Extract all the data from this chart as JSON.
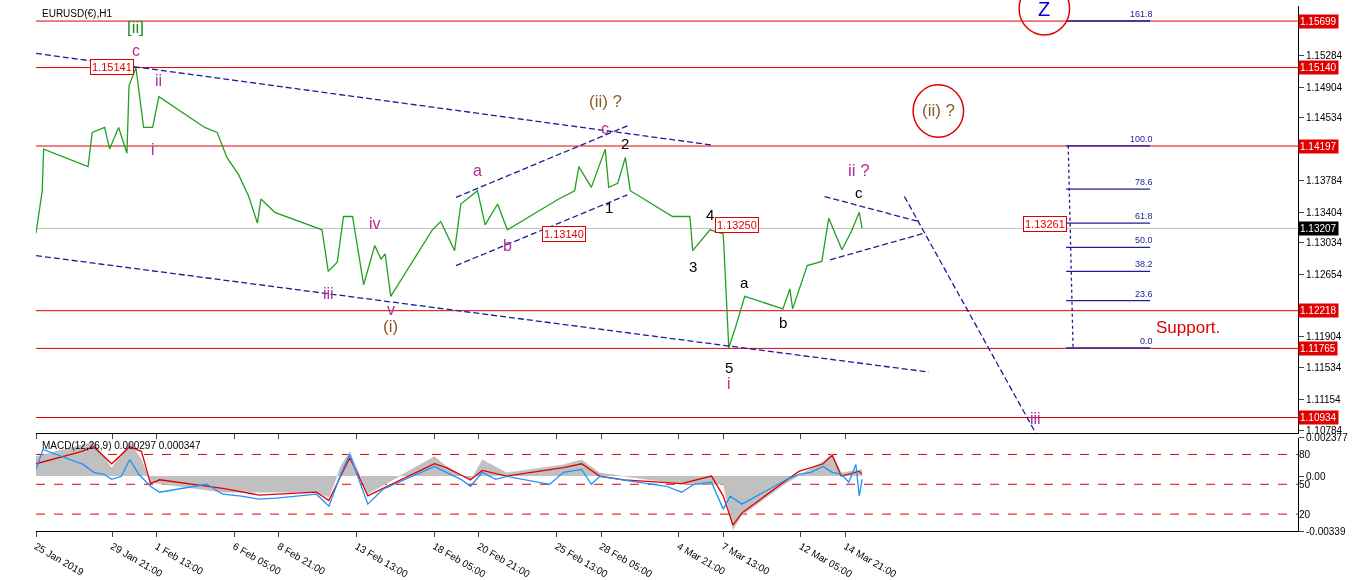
{
  "chart_data": [
    {
      "type": "line",
      "title": "EURUSD(€),H1",
      "tick_labels": "y",
      "xlim": [
        "2019-01-25T07:00",
        "2019-04-11T01:00"
      ],
      "xticks": [
        {
          "value": "2019-01-25T07:00",
          "label": null
        },
        {
          "value": "2019-01-29T21:00",
          "label": null
        },
        {
          "value": "2019-02-01T13:00",
          "label": null
        },
        {
          "value": "2019-02-06T05:00",
          "label": null
        },
        {
          "value": "2019-02-08T21:00",
          "label": null
        },
        {
          "value": "2019-02-13T13:00",
          "label": null
        },
        {
          "value": "2019-02-18T05:00",
          "label": null
        },
        {
          "value": "2019-02-20T21:00",
          "label": null
        },
        {
          "value": "2019-02-25T13:00",
          "label": null
        },
        {
          "value": "2019-02-28T05:00",
          "label": null
        },
        {
          "value": "2019-03-04T21:00",
          "label": null
        },
        {
          "value": "2019-03-07T13:00",
          "label": null
        },
        {
          "value": "2019-03-12T05:00",
          "label": null
        },
        {
          "value": "2019-03-14T21:00",
          "label": null
        }
      ],
      "ylim": [
        1.1075,
        1.1588
      ],
      "yticks": [
        1.15284,
        1.14904,
        1.14534,
        1.13784,
        1.13404,
        1.13034,
        1.12654,
        1.11904,
        1.11534,
        1.11154,
        1.10784
      ],
      "series": [
        {
          "color": "#22a022",
          "x": [
            "2019-01-25T07:00",
            "2019-01-25T16:00",
            "2019-01-25T18:00",
            "2019-01-28T10:00",
            "2019-01-28T16:00",
            "2019-01-29T10:00",
            "2019-01-29T17:00",
            "2019-01-30T06:00",
            "2019-01-30T18:00",
            "2019-01-30T21:00",
            "2019-01-31T07:00",
            "2019-01-31T18:00",
            "2019-02-01T07:00",
            "2019-02-01T16:00",
            "2019-02-04T10:00",
            "2019-02-05T04:00",
            "2019-02-05T18:00",
            "2019-02-06T11:00",
            "2019-02-07T01:00",
            "2019-02-07T14:00",
            "2019-02-07T19:00",
            "2019-02-08T15:00",
            "2019-02-11T11:00",
            "2019-02-11T20:00",
            "2019-02-12T09:00",
            "2019-02-12T18:00",
            "2019-02-13T07:00",
            "2019-02-13T23:00",
            "2019-02-14T15:00",
            "2019-02-15T00:00",
            "2019-02-15T06:00",
            "2019-02-15T14:00",
            "2019-02-18T02:00",
            "2019-02-18T14:00",
            "2019-02-19T10:00",
            "2019-02-19T19:00",
            "2019-02-20T19:00",
            "2019-02-21T06:00",
            "2019-02-22T00:00",
            "2019-02-22T14:00",
            "2019-02-25T16:00",
            "2019-02-26T15:00",
            "2019-02-26T21:00",
            "2019-02-27T15:00",
            "2019-02-28T11:00",
            "2019-02-28T16:00",
            "2019-03-01T05:00",
            "2019-03-01T16:00",
            "2019-03-01T23:00",
            "2019-03-04T12:00",
            "2019-03-05T13:00",
            "2019-03-05T17:00",
            "2019-03-06T18:00",
            "2019-03-07T13:00",
            "2019-03-07T15:00",
            "2019-03-07T21:00",
            "2019-03-08T06:00",
            "2019-03-08T20:00",
            "2019-03-11T03:00",
            "2019-03-11T13:00",
            "2019-03-11T17:00",
            "2019-03-12T14:00",
            "2019-03-13T11:00",
            "2019-03-13T21:00",
            "2019-03-14T16:00",
            "2019-03-15T05:00",
            "2019-03-15T17:00",
            "2019-03-15T21:00"
          ],
          "values": [
            1.1315,
            1.1366,
            1.1416,
            1.1395,
            1.1436,
            1.1442,
            1.1416,
            1.1442,
            1.1411,
            1.1492,
            1.1514,
            1.1442,
            1.1442,
            1.1479,
            1.1442,
            1.1436,
            1.1406,
            1.1385,
            1.136,
            1.1327,
            1.1356,
            1.134,
            1.1319,
            1.1269,
            1.128,
            1.1335,
            1.1335,
            1.1253,
            1.13,
            1.1284,
            1.129,
            1.1239,
            1.1319,
            1.1329,
            1.1294,
            1.135,
            1.1366,
            1.1325,
            1.135,
            1.1319,
            1.1356,
            1.1366,
            1.1395,
            1.137,
            1.1416,
            1.137,
            1.1375,
            1.1406,
            1.1366,
            1.1335,
            1.1335,
            1.1294,
            1.1319,
            1.1314,
            1.1281,
            1.1177,
            1.12,
            1.1239,
            1.1224,
            1.1248,
            1.1224,
            1.1276,
            1.1281,
            1.1333,
            1.1295,
            1.1316,
            1.134,
            1.1321
          ]
        },
        {
          "color": "#1c1c9c",
          "line_style": "dashed",
          "x": [
            "2019-01-25T07:00",
            "2019-03-06T20:00"
          ],
          "values": [
            1.1531,
            1.1421
          ]
        },
        {
          "color": "#1c1c9c",
          "line_style": "dashed",
          "x": [
            "2019-01-25T07:00",
            "2019-03-19T21:00"
          ],
          "values": [
            1.1288,
            1.1148
          ]
        },
        {
          "color": "#1c1c9c",
          "line_style": "dashed",
          "x": [
            "2019-02-19T12:00",
            "2019-03-01T19:00"
          ],
          "values": [
            1.1358,
            1.1444
          ]
        },
        {
          "color": "#1c1c9c",
          "line_style": "dashed",
          "x": [
            "2019-02-19T12:00",
            "2019-03-01T19:00"
          ],
          "values": [
            1.1276,
            1.1361
          ]
        },
        {
          "color": "#1c1c9c",
          "line_style": "dashed",
          "x": [
            "2019-03-13T15:00",
            "2019-03-19T06:00"
          ],
          "values": [
            1.1359,
            1.1329
          ]
        },
        {
          "color": "#1c1c9c",
          "line_style": "dashed",
          "x": [
            "2019-03-13T23:00",
            "2019-03-19T15:00"
          ],
          "values": [
            1.1283,
            1.1315
          ]
        },
        {
          "color": "#1c1c9c",
          "line_style": "dashed",
          "x": [
            "2019-03-18T10:00",
            "2019-03-26T07:00"
          ],
          "values": [
            1.1359,
            1.1075
          ]
        },
        {
          "color": "#1c1c9c",
          "line_style": "dotted",
          "x": [
            "2019-03-28T06:00",
            "2019-03-28T13:00"
          ],
          "values": [
            1.142,
            1.1177
          ]
        },
        {
          "color": "#1c1c9c",
          "x": [
            "2019-03-28T03:00",
            "2019-04-02T04:00"
          ],
          "values": [
            1.157,
            1.157
          ]
        },
        {
          "color": "#1c1c9c",
          "x": [
            "2019-03-28T03:00",
            "2019-04-02T04:00"
          ],
          "values": [
            1.142,
            1.142
          ]
        },
        {
          "color": "#1c1c9c",
          "x": [
            "2019-03-28T03:00",
            "2019-04-02T04:00"
          ],
          "values": [
            1.1368,
            1.1368
          ]
        },
        {
          "color": "#1c1c9c",
          "x": [
            "2019-03-28T03:00",
            "2019-04-02T04:00"
          ],
          "values": [
            1.1327,
            1.1327
          ]
        },
        {
          "color": "#1c1c9c",
          "x": [
            "2019-03-28T03:00",
            "2019-04-02T04:00"
          ],
          "values": [
            1.1298,
            1.1298
          ]
        },
        {
          "color": "#1c1c9c",
          "x": [
            "2019-03-28T03:00",
            "2019-04-02T04:00"
          ],
          "values": [
            1.1269,
            1.1269
          ]
        },
        {
          "color": "#1c1c9c",
          "x": [
            "2019-03-28T03:00",
            "2019-04-02T04:00"
          ],
          "values": [
            1.1234,
            1.1234
          ]
        },
        {
          "color": "#1c1c9c",
          "x": [
            "2019-03-28T03:00",
            "2019-04-02T04:00"
          ],
          "values": [
            1.1177,
            1.1177
          ]
        }
      ],
      "ref_lines": [
        {
          "axis": "y",
          "value": 1.15699,
          "label": "1.15699",
          "color": "#e00000"
        },
        {
          "axis": "y",
          "value": 1.1514,
          "label": "1.15140",
          "color": "#e00000"
        },
        {
          "axis": "y",
          "value": 1.14197,
          "label": "1.14197",
          "color": "#e00000"
        },
        {
          "axis": "y",
          "value": 1.13207,
          "label": "1.13207",
          "color": "#c0c0c0"
        },
        {
          "axis": "y",
          "value": 1.12218,
          "label": "1.12218",
          "color": "#e00000"
        },
        {
          "axis": "y",
          "value": 1.11765,
          "label": "1.11765",
          "color": "#e00000"
        },
        {
          "axis": "y",
          "value": 1.10934,
          "label": "1.10934",
          "color": "#e00000"
        }
      ],
      "annotations": [
        {
          "text": "[ii]",
          "x": "2019-01-31T07:00",
          "y": 1.1514
        },
        {
          "text": "c",
          "x": "2019-01-31T07:00",
          "y": 1.1514
        },
        {
          "text": "1.15141",
          "x": "2019-01-29T21:00",
          "y": 1.15141
        },
        {
          "text": "ii",
          "x": "2019-02-01T16:00",
          "y": 1.1479
        },
        {
          "text": "i",
          "x": "2019-02-01T07:00",
          "y": 1.1442
        },
        {
          "text": "iii",
          "x": "2019-02-11T20:00",
          "y": 1.1269
        },
        {
          "text": "iv",
          "x": "2019-02-14T15:00",
          "y": 1.13
        },
        {
          "text": "v",
          "x": "2019-02-15T14:00",
          "y": 1.1239
        },
        {
          "text": "(i)",
          "x": "2019-02-15T14:00",
          "y": 1.1239
        },
        {
          "text": "a",
          "x": "2019-02-20T19:00",
          "y": 1.1366
        },
        {
          "text": "b",
          "x": "2019-02-22T14:00",
          "y": 1.1319
        },
        {
          "text": "1.13140",
          "x": "2019-02-25T23:00",
          "y": 1.1314
        },
        {
          "text": "(ii) ?",
          "x": "2019-02-28T11:00",
          "y": 1.1416
        },
        {
          "text": "c",
          "x": "2019-02-28T11:00",
          "y": 1.1416
        },
        {
          "text": "2",
          "x": "2019-03-01T16:00",
          "y": 1.1406
        },
        {
          "text": "1",
          "x": "2019-02-28T16:00",
          "y": 1.137
        },
        {
          "text": "3",
          "x": "2019-03-05T17:00",
          "y": 1.1294
        },
        {
          "text": "4",
          "x": "2019-03-06T18:00",
          "y": 1.1319
        },
        {
          "text": "1.13250",
          "x": "2019-03-08T09:00",
          "y": 1.1325
        },
        {
          "text": "5",
          "x": "2019-03-07T21:00",
          "y": 1.1177
        },
        {
          "text": "i",
          "x": "2019-03-07T21:00",
          "y": 1.1177
        },
        {
          "text": "a",
          "x": "2019-03-08T20:00",
          "y": 1.1239
        },
        {
          "text": "b",
          "x": "2019-03-11T03:00",
          "y": 1.1224
        },
        {
          "text": "ii ?",
          "x": "2019-03-15T17:00",
          "y": 1.134
        },
        {
          "text": "c",
          "x": "2019-03-15T17:00",
          "y": 1.134
        },
        "(ii) ?",
        "Z",
        {
          "text": "1.13261",
          "x": "2019-03-26T21:00",
          "y": 1.13261
        },
        "Support.",
        {
          "text": "iii",
          "x": "2019-03-26T07:00",
          "y": 1.1075
        },
        {
          "text": "161.8",
          "x": "2019-04-01T15:00",
          "y": 1.157
        },
        {
          "text": "100.0",
          "x": "2019-04-01T15:00",
          "y": 1.142
        },
        {
          "text": "78.6",
          "x": "2019-04-01T15:00",
          "y": 1.1368
        },
        {
          "text": "61.8",
          "x": "2019-04-01T15:00",
          "y": 1.1327
        },
        {
          "text": "50.0",
          "x": "2019-04-01T15:00",
          "y": 1.1298
        },
        {
          "text": "38.2",
          "x": "2019-04-01T15:00",
          "y": 1.1269
        },
        {
          "text": "23.6",
          "x": "2019-04-01T15:00",
          "y": 1.1234
        },
        {
          "text": "0.0",
          "x": "2019-04-01T15:00",
          "y": 1.1177
        }
      ]
    },
    {
      "type": "line",
      "title": "MACD(12,26,9) 0.000297 0.000347",
      "xlim": [
        "2019-01-25T07:00",
        "2019-04-11T01:00"
      ],
      "xticks": [
        {
          "value": "2019-01-25T07:00",
          "label": "25 Jan 2019"
        },
        {
          "value": "2019-01-29T21:00",
          "label": "29 Jan 21:00"
        },
        {
          "value": "2019-02-01T13:00",
          "label": "1 Feb 13:00"
        },
        {
          "value": "2019-02-06T05:00",
          "label": "6 Feb 05:00"
        },
        {
          "value": "2019-02-08T21:00",
          "label": "8 Feb 21:00"
        },
        {
          "value": "2019-02-13T13:00",
          "label": "13 Feb 13:00"
        },
        {
          "value": "2019-02-18T05:00",
          "label": "18 Feb 05:00"
        },
        {
          "value": "2019-02-20T21:00",
          "label": "20 Feb 21:00"
        },
        {
          "value": "2019-02-25T13:00",
          "label": "25 Feb 13:00"
        },
        {
          "value": "2019-02-28T05:00",
          "label": "28 Feb 05:00"
        },
        {
          "value": "2019-03-04T21:00",
          "label": "4 Mar 21:00"
        },
        {
          "value": "2019-03-07T13:00",
          "label": "7 Mar 13:00"
        },
        {
          "value": "2019-03-12T05:00",
          "label": "12 Mar 05:00"
        },
        {
          "value": "2019-03-14T21:00",
          "label": "14 Mar 21:00"
        }
      ],
      "ylim": [
        -0.00339,
        0.002377
      ],
      "yticks": [
        0.002377,
        {
          "value": 0,
          "label": "0.00"
        },
        -0.00339
      ],
      "y2lim": [
        3,
        97
      ],
      "y2ticks": [
        20,
        50,
        80
      ],
      "series": [
        {
          "type": "area",
          "color": "#c0c0c0",
          "x": [
            "2019-01-25T07:00",
            "2019-01-28T18:00",
            "2019-01-29T20:00",
            "2019-01-30T22:00",
            "2019-01-31T15:00",
            "2019-02-01T04:00",
            "2019-02-05T12:00",
            "2019-02-11T03:00",
            "2019-02-11T21:00",
            "2019-02-12T14:00",
            "2019-02-13T03:00",
            "2019-02-14T05:00",
            "2019-02-18T05:00",
            "2019-02-18T22:00",
            "2019-02-20T09:00",
            "2019-02-21T02:00",
            "2019-02-22T13:00",
            "2019-02-25T23:00",
            "2019-02-27T01:00",
            "2019-02-28T03:00",
            "2019-03-05T01:00",
            "2019-03-07T13:00",
            "2019-03-08T03:00",
            "2019-03-08T16:00",
            "2019-03-11T09:00",
            "2019-03-13T13:00",
            "2019-03-14T02:00",
            "2019-03-14T15:00",
            "2019-03-15T21:00"
          ],
          "values": [
            0.0012,
            0.0021,
            0.0005,
            0.0021,
            0.001,
            -0.0004,
            -0.001,
            -0.001,
            -0.0013,
            0.0006,
            0.0015,
            -0.0011,
            0.0012,
            0.0006,
            -0.0003,
            0.001,
            0.0002,
            0.0007,
            0.001,
            0.0002,
            -0.0005,
            -0.0005,
            -0.0033,
            -0.0024,
            -0.0004,
            0.0009,
            0.0014,
            0.0002,
            0.0004
          ]
        },
        {
          "color": "#1e90ff",
          "axis": "y2",
          "x": [
            "2019-01-25T07:00",
            "2019-01-25T17:00",
            "2019-01-28T03:00",
            "2019-01-28T18:00",
            "2019-01-29T09:00",
            "2019-01-29T20:00",
            "2019-01-30T10:00",
            "2019-01-30T22:00",
            "2019-01-31T11:00",
            "2019-02-01T04:00",
            "2019-02-01T17:00",
            "2019-02-04T13:00",
            "2019-02-05T12:00",
            "2019-02-06T15:00",
            "2019-02-07T16:00",
            "2019-02-08T17:00",
            "2019-02-11T03:00",
            "2019-02-11T21:00",
            "2019-02-12T14:00",
            "2019-02-13T03:00",
            "2019-02-13T16:00",
            "2019-02-14T05:00",
            "2019-02-15T03:00",
            "2019-02-18T05:00",
            "2019-02-18T22:00",
            "2019-02-19T19:00",
            "2019-02-20T09:00",
            "2019-02-21T02:00",
            "2019-02-21T21:00",
            "2019-02-22T13:00",
            "2019-02-25T03:00",
            "2019-02-25T23:00",
            "2019-02-27T01:00",
            "2019-02-27T15:00",
            "2019-02-28T03:00",
            "2019-03-01T07:00",
            "2019-03-04T03:00",
            "2019-03-05T01:00",
            "2019-03-05T19:00",
            "2019-03-06T20:00",
            "2019-03-07T13:00",
            "2019-03-07T23:00",
            "2019-03-08T16:00",
            "2019-03-11T09:00",
            "2019-03-12T02:00",
            "2019-03-12T19:00",
            "2019-03-13T13:00",
            "2019-03-14T02:00",
            "2019-03-14T15:00",
            "2019-03-15T02:00",
            "2019-03-15T12:00",
            "2019-03-15T17:00",
            "2019-03-15T21:00"
          ],
          "values": [
            65,
            85,
            70,
            62,
            60,
            55,
            58,
            75,
            60,
            48,
            42,
            50,
            40,
            38,
            35,
            36,
            40,
            28,
            60,
            80,
            55,
            30,
            45,
            68,
            62,
            55,
            48,
            62,
            55,
            58,
            50,
            62,
            65,
            50,
            58,
            55,
            48,
            42,
            50,
            52,
            25,
            38,
            30,
            55,
            60,
            62,
            68,
            62,
            60,
            52,
            70,
            38,
            55
          ]
        },
        {
          "color": "#e00000",
          "x": [
            "2019-01-25T07:00",
            "2019-01-28T00:00",
            "2019-01-28T18:00",
            "2019-01-29T20:00",
            "2019-01-30T22:00",
            "2019-01-31T15:00",
            "2019-02-01T04:00",
            "2019-02-01T17:00",
            "2019-02-05T12:00",
            "2019-02-07T16:00",
            "2019-02-11T03:00",
            "2019-02-11T21:00",
            "2019-02-12T14:00",
            "2019-02-13T03:00",
            "2019-02-13T16:00",
            "2019-02-14T05:00",
            "2019-02-15T03:00",
            "2019-02-18T05:00",
            "2019-02-18T22:00",
            "2019-02-20T09:00",
            "2019-02-21T02:00",
            "2019-02-22T13:00",
            "2019-02-25T23:00",
            "2019-02-27T01:00",
            "2019-02-28T03:00",
            "2019-03-01T14:00",
            "2019-03-05T01:00",
            "2019-03-06T20:00",
            "2019-03-07T13:00",
            "2019-03-08T03:00",
            "2019-03-08T16:00",
            "2019-03-11T09:00",
            "2019-03-12T02:00",
            "2019-03-13T13:00",
            "2019-03-14T02:00",
            "2019-03-14T15:00",
            "2019-03-15T17:00",
            "2019-03-15T21:00"
          ],
          "values": [
            0.00076,
            0.00151,
            0.00181,
            0.00076,
            0.00181,
            0.00151,
            -0.00047,
            -0.00023,
            -0.00076,
            -0.00117,
            -0.00099,
            -0.00151,
            0,
            0.00111,
            0,
            -0.00122,
            -0.00076,
            0.00076,
            0.00052,
            -0.00023,
            0.00035,
            0,
            0.00052,
            0.00076,
            0,
            -0.00023,
            -0.00047,
            0,
            -0.00122,
            -0.00303,
            -0.00227,
            -0.00023,
            0.00029,
            0.00076,
            0.00128,
            0,
            0.00029,
            0.00012
          ]
        }
      ],
      "ref_lines": [
        {
          "axis": "y2",
          "value": 80,
          "color": "#e00000",
          "line_style": "dashed"
        },
        {
          "axis": "y2",
          "value": 50,
          "color": "#e00000",
          "line_style": "dashed"
        },
        {
          "axis": "y2",
          "value": 20,
          "color": "#e00000",
          "line_style": "dashed"
        }
      ]
    }
  ]
}
